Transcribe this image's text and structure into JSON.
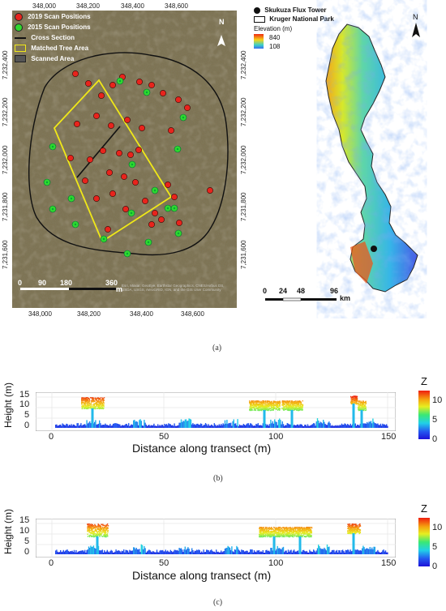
{
  "figure": {
    "caption_a": "(a)",
    "caption_b": "(b)",
    "caption_c": "(c)"
  },
  "map_left": {
    "top_ticks": [
      "348,000",
      "348,200",
      "348,400",
      "348,600"
    ],
    "bottom_ticks": [
      "348,000",
      "348,200",
      "348,400",
      "348,600"
    ],
    "left_ticks": [
      "7,232,400",
      "7,232,200",
      "7,232,000",
      "7,231,800",
      "7,231,600"
    ],
    "right_ticks": [
      "7,232,400",
      "7,232,200",
      "7,232,000",
      "7,231,800",
      "7,231,600"
    ],
    "legend": [
      {
        "label": "2019 Scan Positions",
        "color": "#e8241c"
      },
      {
        "label": "2015 Scan Positions",
        "color": "#2fd82f"
      },
      {
        "label": "Cross Section",
        "color": "#111111"
      },
      {
        "label": "Matched Tree Area",
        "color": "#f0e818"
      },
      {
        "label": "Scanned Area",
        "color": "#555555"
      }
    ],
    "scale_labels": [
      "0",
      "90",
      "180",
      "360"
    ],
    "scale_unit": "m",
    "north": "N",
    "credit": "Esri, Maxar, GeoEye, Earthstar Geographics, CNES/Airbus DS, USDA, USGS, AeroGRID, IGN, and the GIS User Community"
  },
  "map_right": {
    "legend": [
      {
        "label": "Skukuza Flux Tower"
      },
      {
        "label": "Kruger National Park"
      }
    ],
    "elevation_title": "Elevation (m)",
    "elevation_max": "840",
    "elevation_min": "108",
    "scale_labels": [
      "0",
      "24",
      "48",
      "96"
    ],
    "scale_unit": "km",
    "north": "N"
  },
  "panel_b": {
    "z_title": "Z",
    "y_title": "Height (m)",
    "x_title": "Distance along transect (m)",
    "y_ticks": [
      "15",
      "10",
      "5",
      "0"
    ],
    "x_ticks": [
      "0",
      "50",
      "100",
      "150"
    ],
    "colorbar_ticks": [
      "10",
      "5",
      "0"
    ]
  },
  "panel_c": {
    "z_title": "Z",
    "y_title": "Height (m)",
    "x_title": "Distance along transect (m)",
    "y_ticks": [
      "15",
      "10",
      "5",
      "0"
    ],
    "x_ticks": [
      "0",
      "50",
      "100",
      "150"
    ],
    "colorbar_ticks": [
      "10",
      "5",
      "0"
    ]
  },
  "colors": {
    "ground": "#1a2fd0",
    "canopy_high": "#e83a1a",
    "frame": "#7a8a7a"
  }
}
